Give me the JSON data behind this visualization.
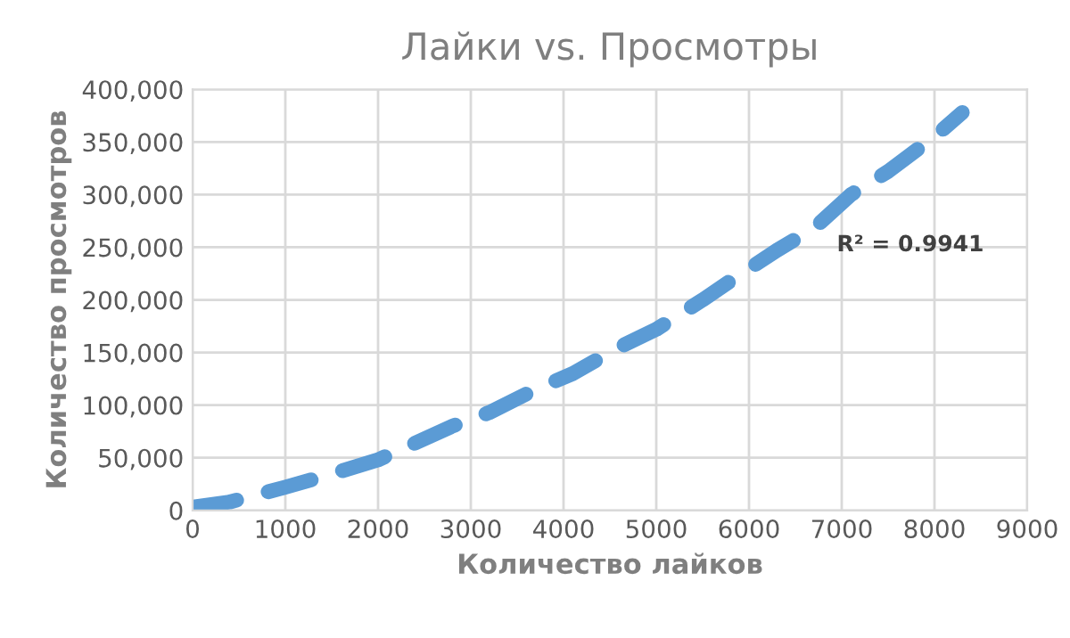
{
  "chart_data": {
    "type": "line",
    "title": "Лайки vs. Просмотры",
    "xlabel": "Количество лайков",
    "ylabel": "Количество просмотров",
    "annotations": [
      "R² = 0.9941"
    ],
    "xlim": [
      0,
      9000
    ],
    "xticks": [
      0,
      1000,
      2000,
      3000,
      4000,
      5000,
      6000,
      7000,
      8000,
      9000
    ],
    "ylim": [
      0,
      400000
    ],
    "yticks": [
      {
        "value": 0,
        "label": "0"
      },
      {
        "value": 50000,
        "label": "50,000"
      },
      {
        "value": 100000,
        "label": "100,000"
      },
      {
        "value": 150000,
        "label": "150,000"
      },
      {
        "value": 200000,
        "label": "200,000"
      },
      {
        "value": 250000,
        "label": "250,000"
      },
      {
        "value": 300000,
        "label": "300,000"
      },
      {
        "value": 350000,
        "label": "350,000"
      },
      {
        "value": 400000,
        "label": "400,000"
      }
    ],
    "grid": true,
    "marker": "none",
    "line_style": "dashed",
    "series": [
      {
        "color": "#5b9bd5",
        "x": [
          0,
          400,
          1000,
          1400,
          2000,
          2300,
          2800,
          3200,
          3700,
          4100,
          4600,
          5000,
          5500,
          5800,
          6300,
          6700,
          7100,
          7500,
          8000,
          8300
        ],
        "values": [
          3000,
          8000,
          22000,
          32000,
          48000,
          60000,
          80000,
          93000,
          115000,
          130000,
          155000,
          172000,
          200000,
          218000,
          247000,
          268000,
          300000,
          322000,
          355000,
          378000
        ]
      }
    ]
  }
}
